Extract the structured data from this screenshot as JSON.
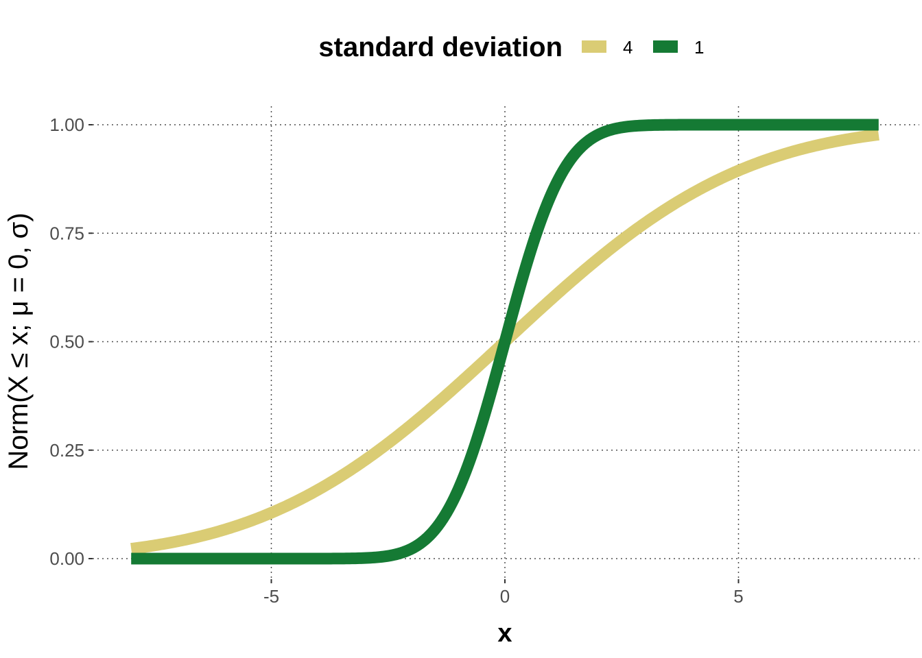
{
  "chart_data": {
    "type": "line",
    "xlabel": "x",
    "ylabel": "Norm(X ≤ x; μ = 0, σ)",
    "xlim": [
      -8,
      8
    ],
    "ylim": [
      0,
      1
    ],
    "x_ticks": [
      -5,
      0,
      5
    ],
    "x_tick_labels": [
      "-5",
      "0",
      "5"
    ],
    "y_ticks": [
      0,
      0.25,
      0.5,
      0.75,
      1
    ],
    "y_tick_labels": [
      "0.00",
      "0.25",
      "0.50",
      "0.75",
      "1.00"
    ],
    "grid": true,
    "legend": {
      "title": "standard deviation",
      "position": "top"
    },
    "series": [
      {
        "name": "4",
        "sd": 4,
        "color": "#DACC74"
      },
      {
        "name": "1",
        "sd": 1,
        "color": "#157A34"
      }
    ]
  }
}
